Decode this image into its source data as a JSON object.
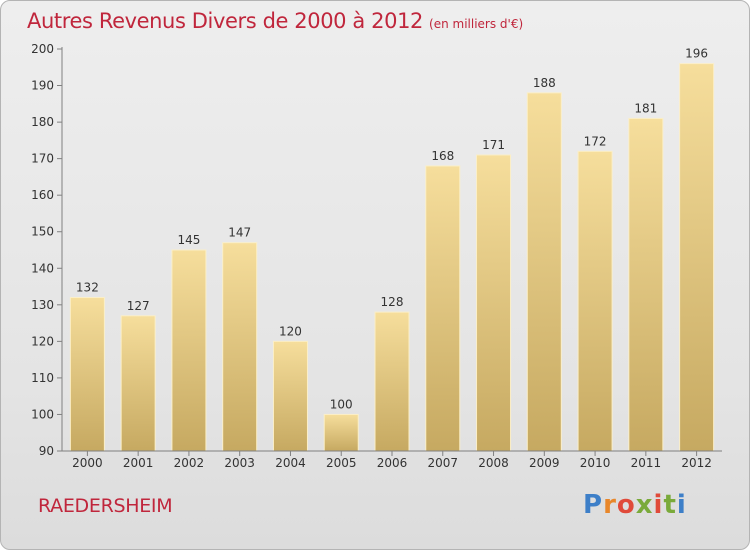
{
  "title": "Autres Revenus Divers de 2000 à 2012",
  "subtitle": "(en milliers d'€)",
  "commune": "RAEDERSHEIM",
  "brand": {
    "text": "Proxiti",
    "colors": [
      "#3d7fc8",
      "#e8872a",
      "#e04a3a",
      "#7aaa3a",
      "#e04a3a",
      "#7aaa3a",
      "#3d7fc8"
    ]
  },
  "colors": {
    "accent": "#c0263c",
    "bar_light": "#f5dc98",
    "bar_dark": "#c7aa62",
    "axis": "#808080"
  },
  "chart_data": {
    "type": "bar",
    "title": "Autres Revenus Divers de 2000 à 2012",
    "subtitle": "(en milliers d'€)",
    "categories": [
      "2000",
      "2001",
      "2002",
      "2003",
      "2004",
      "2005",
      "2006",
      "2007",
      "2008",
      "2009",
      "2010",
      "2011",
      "2012"
    ],
    "values": [
      132,
      127,
      145,
      147,
      120,
      100,
      128,
      168,
      171,
      188,
      172,
      181,
      196
    ],
    "ylim": [
      90,
      200
    ],
    "yticks": [
      90,
      100,
      110,
      120,
      130,
      140,
      150,
      160,
      170,
      180,
      190,
      200
    ],
    "grid": false,
    "data_labels": true,
    "legend": false
  }
}
